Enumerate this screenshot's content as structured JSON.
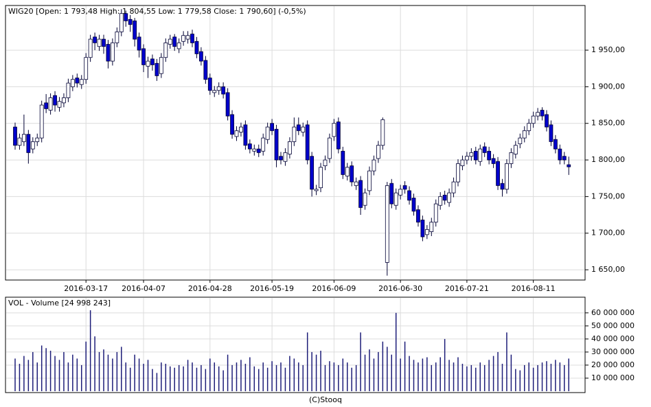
{
  "chart_data": [
    {
      "type": "candlestick",
      "title": "WIG20 [Open: 1 793,48 High: 1 804,55 Low: 1 779,58 Close: 1 790,60] (-0,5%)",
      "categories": [
        null,
        null,
        null,
        null,
        null,
        null,
        null,
        null,
        null,
        null,
        null,
        null,
        null,
        null,
        null,
        null,
        "2016-03-17",
        null,
        null,
        null,
        null,
        null,
        null,
        null,
        null,
        null,
        null,
        null,
        null,
        "2016-04-07",
        null,
        null,
        null,
        null,
        null,
        null,
        null,
        null,
        null,
        null,
        null,
        null,
        null,
        null,
        "2016-04-28",
        null,
        null,
        null,
        null,
        null,
        null,
        null,
        null,
        null,
        null,
        null,
        null,
        null,
        "2016-05-19",
        null,
        null,
        null,
        null,
        null,
        null,
        null,
        null,
        null,
        null,
        null,
        null,
        null,
        "2016-06-09",
        null,
        null,
        null,
        null,
        null,
        null,
        null,
        null,
        null,
        null,
        null,
        null,
        null,
        null,
        "2016-06-30",
        null,
        null,
        null,
        null,
        null,
        null,
        null,
        null,
        null,
        null,
        null,
        null,
        null,
        null,
        "2016-07-21",
        null,
        null,
        null,
        null,
        null,
        null,
        null,
        null,
        null,
        null,
        null,
        null,
        null,
        null,
        "2016-08-11",
        null,
        null,
        null,
        null,
        null,
        null,
        null,
        null
      ],
      "open": [
        1845,
        1820,
        1825,
        1835,
        1815,
        1825,
        1830,
        1878,
        1868,
        1888,
        1872,
        1878,
        1885,
        1900,
        1912,
        1903,
        1910,
        1940,
        1968,
        1955,
        1965,
        1958,
        1935,
        1960,
        1975,
        2000,
        1992,
        1990,
        1968,
        1952,
        1928,
        1938,
        1932,
        1918,
        1940,
        1958,
        1968,
        1952,
        1962,
        1965,
        1972,
        1962,
        1948,
        1936,
        1912,
        1892,
        1895,
        1900,
        1892,
        1862,
        1832,
        1838,
        1848,
        1822,
        1812,
        1815,
        1812,
        1828,
        1850,
        1842,
        1805,
        1798,
        1808,
        1825,
        1848,
        1838,
        1848,
        1805,
        1758,
        1762,
        1792,
        1802,
        1832,
        1852,
        1812,
        1778,
        1792,
        1765,
        1772,
        1738,
        1758,
        1785,
        1802,
        1820,
        1660,
        1768,
        1738,
        1752,
        1765,
        1758,
        1748,
        1732,
        1718,
        1698,
        1702,
        1715,
        1738,
        1752,
        1742,
        1755,
        1770,
        1792,
        1800,
        1805,
        1812,
        1798,
        1818,
        1812,
        1802,
        1798,
        1768,
        1760,
        1795,
        1808,
        1822,
        1830,
        1840,
        1850,
        1860,
        1868,
        1862,
        1848,
        1828,
        1815,
        1805,
        1793.48
      ],
      "high": [
        1851,
        1836,
        1862,
        1841,
        1831,
        1836,
        1881,
        1890,
        1891,
        1894,
        1886,
        1891,
        1911,
        1916,
        1918,
        1916,
        1946,
        1971,
        1974,
        1971,
        1971,
        1964,
        1966,
        1981,
        2006,
        2004,
        1998,
        1994,
        1974,
        1958,
        1941,
        1944,
        1938,
        1946,
        1966,
        1971,
        1972,
        1966,
        1976,
        1976,
        1978,
        1968,
        1954,
        1942,
        1918,
        1901,
        1906,
        1906,
        1898,
        1868,
        1846,
        1851,
        1854,
        1828,
        1821,
        1821,
        1836,
        1851,
        1856,
        1848,
        1811,
        1816,
        1831,
        1858,
        1858,
        1851,
        1854,
        1811,
        1766,
        1796,
        1806,
        1836,
        1856,
        1858,
        1818,
        1796,
        1798,
        1776,
        1778,
        1761,
        1791,
        1806,
        1826,
        1858,
        1770,
        1774,
        1761,
        1766,
        1771,
        1764,
        1754,
        1738,
        1724,
        1711,
        1721,
        1746,
        1756,
        1758,
        1761,
        1776,
        1801,
        1806,
        1811,
        1816,
        1818,
        1821,
        1824,
        1818,
        1808,
        1804,
        1774,
        1801,
        1816,
        1826,
        1836,
        1846,
        1856,
        1866,
        1871,
        1872,
        1868,
        1854,
        1834,
        1821,
        1811,
        1804.55
      ],
      "low": [
        1814,
        1814,
        1819,
        1795,
        1809,
        1819,
        1824,
        1864,
        1862,
        1866,
        1866,
        1872,
        1879,
        1894,
        1899,
        1897,
        1904,
        1934,
        1950,
        1949,
        1945,
        1925,
        1929,
        1954,
        1969,
        1982,
        1975,
        1955,
        1940,
        1920,
        1912,
        1922,
        1908,
        1912,
        1934,
        1952,
        1949,
        1946,
        1956,
        1959,
        1954,
        1939,
        1929,
        1904,
        1889,
        1886,
        1889,
        1884,
        1854,
        1829,
        1826,
        1832,
        1814,
        1809,
        1806,
        1804,
        1806,
        1822,
        1834,
        1790,
        1794,
        1792,
        1802,
        1819,
        1834,
        1832,
        1794,
        1750,
        1752,
        1756,
        1786,
        1796,
        1826,
        1809,
        1774,
        1772,
        1764,
        1759,
        1725,
        1732,
        1752,
        1779,
        1796,
        1814,
        1642,
        1734,
        1732,
        1746,
        1754,
        1739,
        1724,
        1709,
        1689,
        1692,
        1696,
        1709,
        1732,
        1739,
        1736,
        1749,
        1764,
        1786,
        1794,
        1799,
        1794,
        1792,
        1804,
        1794,
        1789,
        1759,
        1750,
        1754,
        1789,
        1802,
        1816,
        1824,
        1834,
        1844,
        1854,
        1854,
        1839,
        1819,
        1809,
        1794,
        1794,
        1779.58
      ],
      "close": [
        1820,
        1830,
        1835,
        1810,
        1825,
        1830,
        1875,
        1870,
        1885,
        1875,
        1880,
        1885,
        1905,
        1910,
        1905,
        1910,
        1940,
        1965,
        1960,
        1965,
        1955,
        1935,
        1960,
        1975,
        2000,
        1990,
        1985,
        1965,
        1950,
        1930,
        1935,
        1930,
        1915,
        1940,
        1960,
        1965,
        1955,
        1960,
        1970,
        1970,
        1960,
        1945,
        1935,
        1910,
        1895,
        1895,
        1900,
        1890,
        1860,
        1835,
        1840,
        1845,
        1820,
        1815,
        1815,
        1810,
        1830,
        1845,
        1840,
        1800,
        1800,
        1810,
        1825,
        1845,
        1840,
        1845,
        1800,
        1760,
        1760,
        1790,
        1800,
        1830,
        1850,
        1815,
        1780,
        1790,
        1770,
        1770,
        1735,
        1755,
        1785,
        1800,
        1820,
        1855,
        1765,
        1740,
        1755,
        1760,
        1760,
        1745,
        1730,
        1715,
        1695,
        1705,
        1715,
        1740,
        1750,
        1745,
        1755,
        1770,
        1795,
        1800,
        1805,
        1810,
        1800,
        1815,
        1810,
        1800,
        1795,
        1765,
        1760,
        1795,
        1810,
        1820,
        1830,
        1840,
        1850,
        1860,
        1865,
        1860,
        1845,
        1825,
        1815,
        1800,
        1800,
        1790.6
      ],
      "up_color": "#ffffff",
      "down_color": "#0000cc",
      "outline_color": "#000033",
      "ylim": [
        1636,
        2011
      ],
      "yticks": [
        {
          "value": 1650,
          "label": "1 650,00"
        },
        {
          "value": 1700,
          "label": "1 700,00"
        },
        {
          "value": 1750,
          "label": "1 750,00"
        },
        {
          "value": 1800,
          "label": "1 800,00"
        },
        {
          "value": 1850,
          "label": "1 850,00"
        },
        {
          "value": 1900,
          "label": "1 900,00"
        },
        {
          "value": 1950,
          "label": "1 950,00"
        }
      ],
      "grid": true
    },
    {
      "type": "bar",
      "title": "VOL - Volume [24 998 243]",
      "values": [
        25000000,
        21000000,
        27000000,
        24000000,
        30000000,
        22000000,
        35000000,
        33000000,
        31000000,
        27000000,
        24000000,
        30000000,
        22000000,
        28000000,
        25000000,
        20000000,
        38000000,
        62000000,
        42000000,
        30000000,
        32000000,
        28000000,
        25000000,
        30000000,
        34000000,
        22000000,
        18000000,
        28000000,
        25000000,
        21000000,
        24000000,
        17000000,
        14000000,
        22000000,
        21000000,
        19000000,
        18000000,
        20000000,
        19000000,
        24000000,
        22000000,
        18000000,
        20000000,
        17000000,
        25000000,
        22000000,
        19000000,
        16000000,
        28000000,
        20000000,
        22000000,
        24000000,
        21000000,
        26000000,
        19000000,
        17000000,
        22000000,
        18000000,
        23000000,
        20000000,
        22000000,
        18000000,
        27000000,
        25000000,
        22000000,
        20000000,
        45000000,
        30000000,
        28000000,
        31000000,
        20000000,
        23000000,
        22000000,
        20000000,
        25000000,
        22000000,
        18000000,
        20000000,
        45000000,
        28000000,
        32000000,
        25000000,
        30000000,
        38000000,
        34000000,
        28000000,
        60000000,
        25000000,
        38000000,
        27000000,
        24000000,
        22000000,
        25000000,
        26000000,
        20000000,
        22000000,
        26000000,
        40000000,
        24000000,
        22000000,
        26000000,
        21000000,
        19000000,
        20000000,
        18000000,
        22000000,
        20000000,
        24000000,
        27000000,
        30000000,
        21000000,
        45000000,
        28000000,
        17000000,
        16000000,
        20000000,
        22000000,
        18000000,
        20000000,
        22000000,
        23000000,
        21000000,
        24000000,
        22000000,
        20000000,
        24998243
      ],
      "color": "#1c1c78",
      "ylim": [
        0,
        72000000
      ],
      "yticks": [
        {
          "value": 10000000,
          "label": "10 000 000"
        },
        {
          "value": 20000000,
          "label": "20 000 000"
        },
        {
          "value": 30000000,
          "label": "30 000 000"
        },
        {
          "value": 40000000,
          "label": "40 000 000"
        },
        {
          "value": 50000000,
          "label": "50 000 000"
        },
        {
          "value": 60000000,
          "label": "60 000 000"
        }
      ],
      "grid": true,
      "footer": "(C)Stooq"
    }
  ]
}
